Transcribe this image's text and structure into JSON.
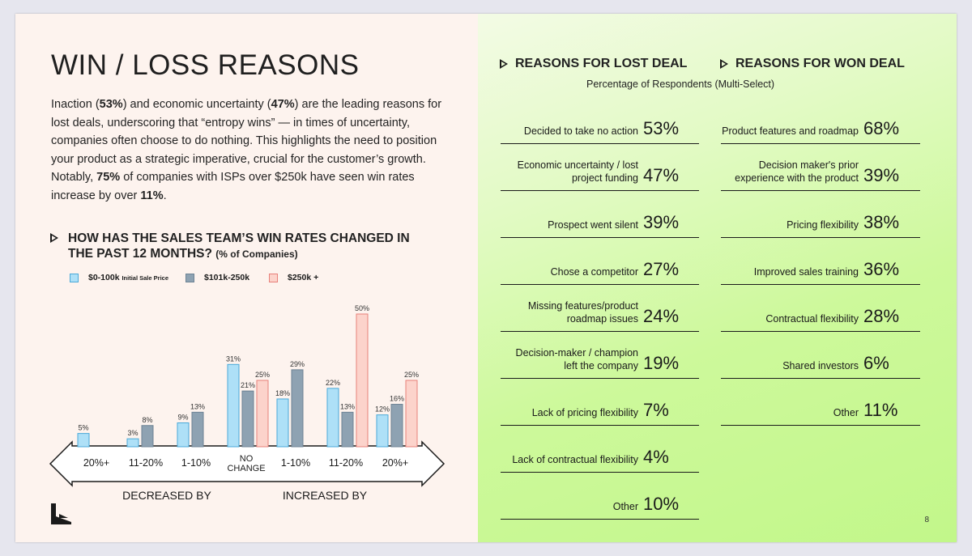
{
  "title": "WIN / LOSS REASONS",
  "intro": {
    "p1": "Inaction (",
    "inaction_pct": "53%",
    "p2": ") and economic uncertainty (",
    "econ_pct": "47%",
    "p3": ") are the leading reasons for lost deals, underscoring that “entropy wins” — in times of uncertainty, companies often choose to do nothing. This highlights the need to position your product as a strategic imperative, crucial for the customer’s growth. Notably, ",
    "isp_pct": "75%",
    "p4": " of companies with ISPs over $250k have seen win rates increase by over ",
    "increase_pct": "11%",
    "p5": "."
  },
  "chart_heading": {
    "main": "HOW HAS THE SALES TEAM’S WIN RATES CHANGED IN THE PAST 12 MONTHS?",
    "sub": "(% of Companies)"
  },
  "legend": {
    "s1_label": "$0-100k",
    "s1_note": "Initial Sale Price",
    "s2_label": "$101k-250k",
    "s3_label": "$250k +"
  },
  "chart_data": {
    "type": "bar",
    "categories": [
      "20%+",
      "11-20%",
      "1-10%",
      "NO CHANGE",
      "1-10%",
      "11-20%",
      "20%+"
    ],
    "series": [
      {
        "name": "$0-100k",
        "values": [
          5,
          3,
          9,
          31,
          18,
          22,
          12
        ],
        "color": "#aee0f7",
        "stroke": "#4aa9d8"
      },
      {
        "name": "$101k-250k",
        "values": [
          null,
          8,
          13,
          21,
          29,
          13,
          16
        ],
        "color": "#8ea2b2",
        "stroke": "#6d8394"
      },
      {
        "name": "$250k +",
        "values": [
          null,
          null,
          null,
          25,
          null,
          50,
          25
        ],
        "color": "#fcd3cb",
        "stroke": "#e8807a"
      }
    ],
    "group_labels": [
      "DECREASED BY",
      "INCREASED BY"
    ],
    "ylim": [
      0,
      50
    ],
    "value_suffix": "%",
    "grid": false
  },
  "lost": {
    "heading": "REASONS FOR LOST DEAL",
    "items": [
      {
        "label": "Decided to take no action",
        "value": "53%"
      },
      {
        "label": "Economic uncertainty / lost project funding",
        "value": "47%"
      },
      {
        "label": "Prospect went silent",
        "value": "39%"
      },
      {
        "label": "Chose a competitor",
        "value": "27%"
      },
      {
        "label": "Missing features/product roadmap issues",
        "value": "24%"
      },
      {
        "label": "Decision-maker / champion left the company",
        "value": "19%"
      },
      {
        "label": "Lack of pricing flexibility",
        "value": "7%"
      },
      {
        "label": "Lack of contractual flexibility",
        "value": "4%"
      },
      {
        "label": "Other",
        "value": "10%"
      }
    ]
  },
  "won": {
    "heading": "REASONS FOR WON  DEAL",
    "items": [
      {
        "label": "Product features and roadmap",
        "value": "68%"
      },
      {
        "label": "Decision maker's prior experience with the product",
        "value": "39%"
      },
      {
        "label": "Pricing flexibility",
        "value": "38%"
      },
      {
        "label": "Improved sales training",
        "value": "36%"
      },
      {
        "label": "Contractual flexibility",
        "value": "28%"
      },
      {
        "label": "Shared investors",
        "value": "6%"
      },
      {
        "label": "Other",
        "value": "11%"
      }
    ]
  },
  "subheading": "Percentage of Respondents (Multi-Select)",
  "page_number": "8"
}
